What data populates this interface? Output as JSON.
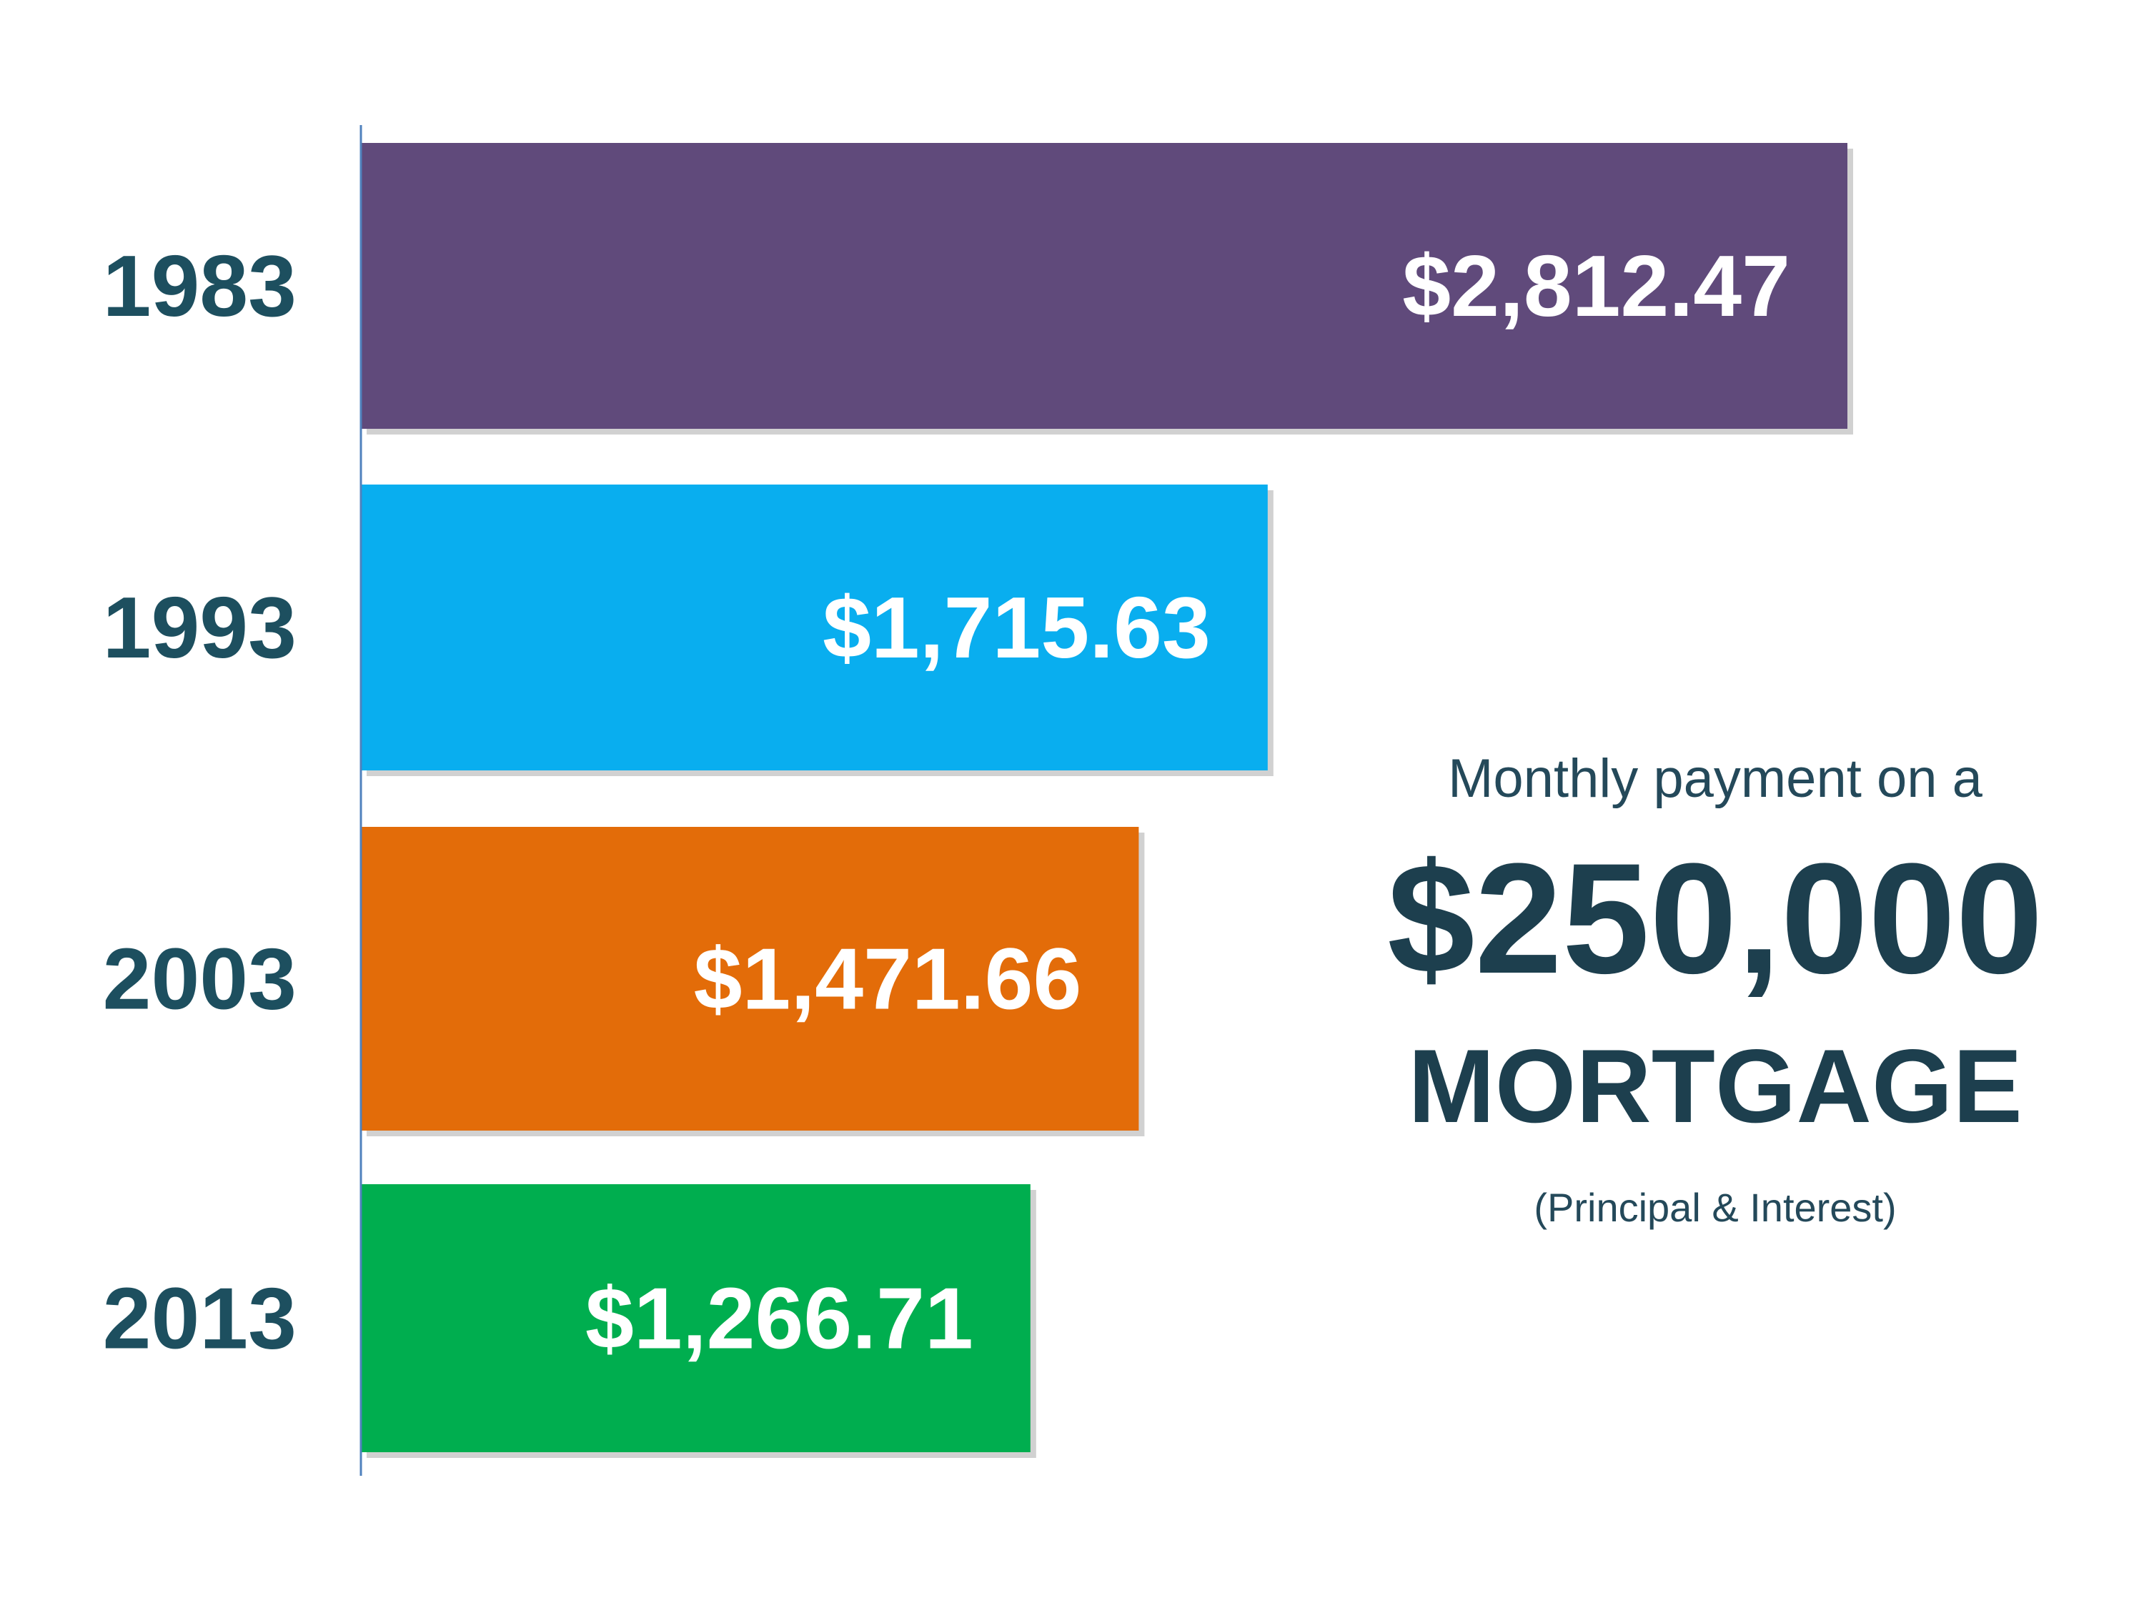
{
  "chart_data": {
    "type": "bar",
    "orientation": "horizontal",
    "categories": [
      "1983",
      "1993",
      "2003",
      "2013"
    ],
    "values": [
      2812.47,
      1715.63,
      1471.66,
      1266.71
    ],
    "value_labels": [
      "$2,812.47",
      "$1,715.63",
      "$1,471.66",
      "$1,266.71"
    ],
    "colors": [
      "#604a7b",
      "#09aeef",
      "#e36c09",
      "#00ae4f"
    ],
    "title": "",
    "xlabel": "",
    "ylabel": "",
    "xlim": [
      0,
      2812.47
    ],
    "grid": false,
    "legend": "none"
  },
  "caption": {
    "line1": "Monthly payment on a",
    "amount": "$250,000",
    "line3": "MORTGAGE",
    "note": "(Principal & Interest)"
  },
  "colors": {
    "label_text": "#1d4f5f",
    "caption_text": "#1d3f4e",
    "axis_line": "#4f81bd",
    "shadow": "#9a9a9a"
  }
}
